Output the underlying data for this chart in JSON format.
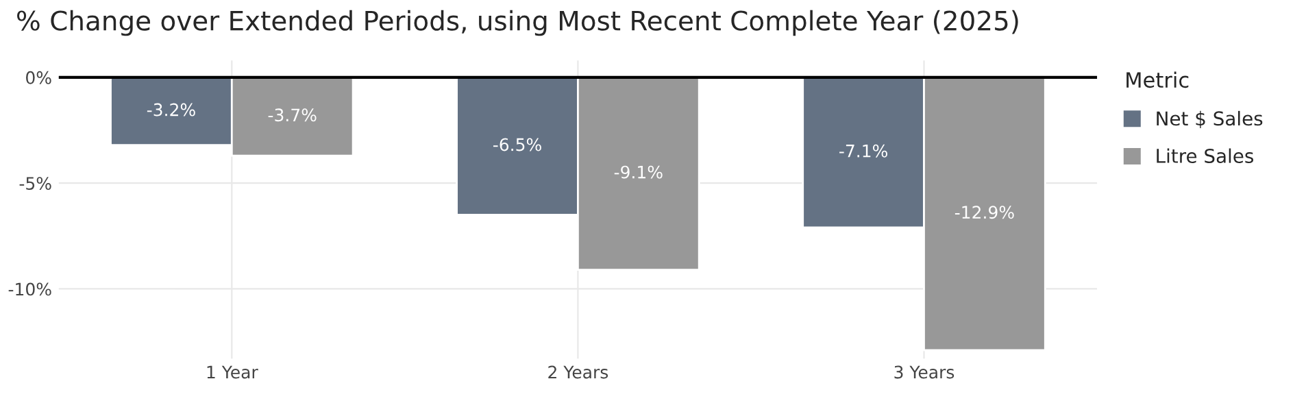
{
  "chart_data": {
    "type": "bar",
    "title": "% Change over Extended Periods, using Most Recent Complete Year (2025)",
    "categories": [
      "1 Year",
      "2 Years",
      "3 Years"
    ],
    "series": [
      {
        "name": "Net $ Sales",
        "color": "#647284",
        "values": [
          -3.2,
          -6.5,
          -7.1
        ],
        "value_labels": [
          "-3.2%",
          "-6.5%",
          "-7.1%"
        ]
      },
      {
        "name": "Litre Sales",
        "color": "#989898",
        "values": [
          -3.7,
          -9.1,
          -12.9
        ],
        "value_labels": [
          "-3.7%",
          "-9.1%",
          "-12.9%"
        ]
      }
    ],
    "legend_title": "Metric",
    "legend": "right",
    "ylim": [
      -13.3,
      0.8
    ],
    "yticks": [
      {
        "value": 0,
        "label": "0%"
      },
      {
        "value": -5,
        "label": "-5%"
      },
      {
        "value": -10,
        "label": "-10%"
      }
    ],
    "ref_lines": [
      {
        "axis": "y",
        "value": 0,
        "color": "#000000"
      }
    ],
    "grid": true
  }
}
